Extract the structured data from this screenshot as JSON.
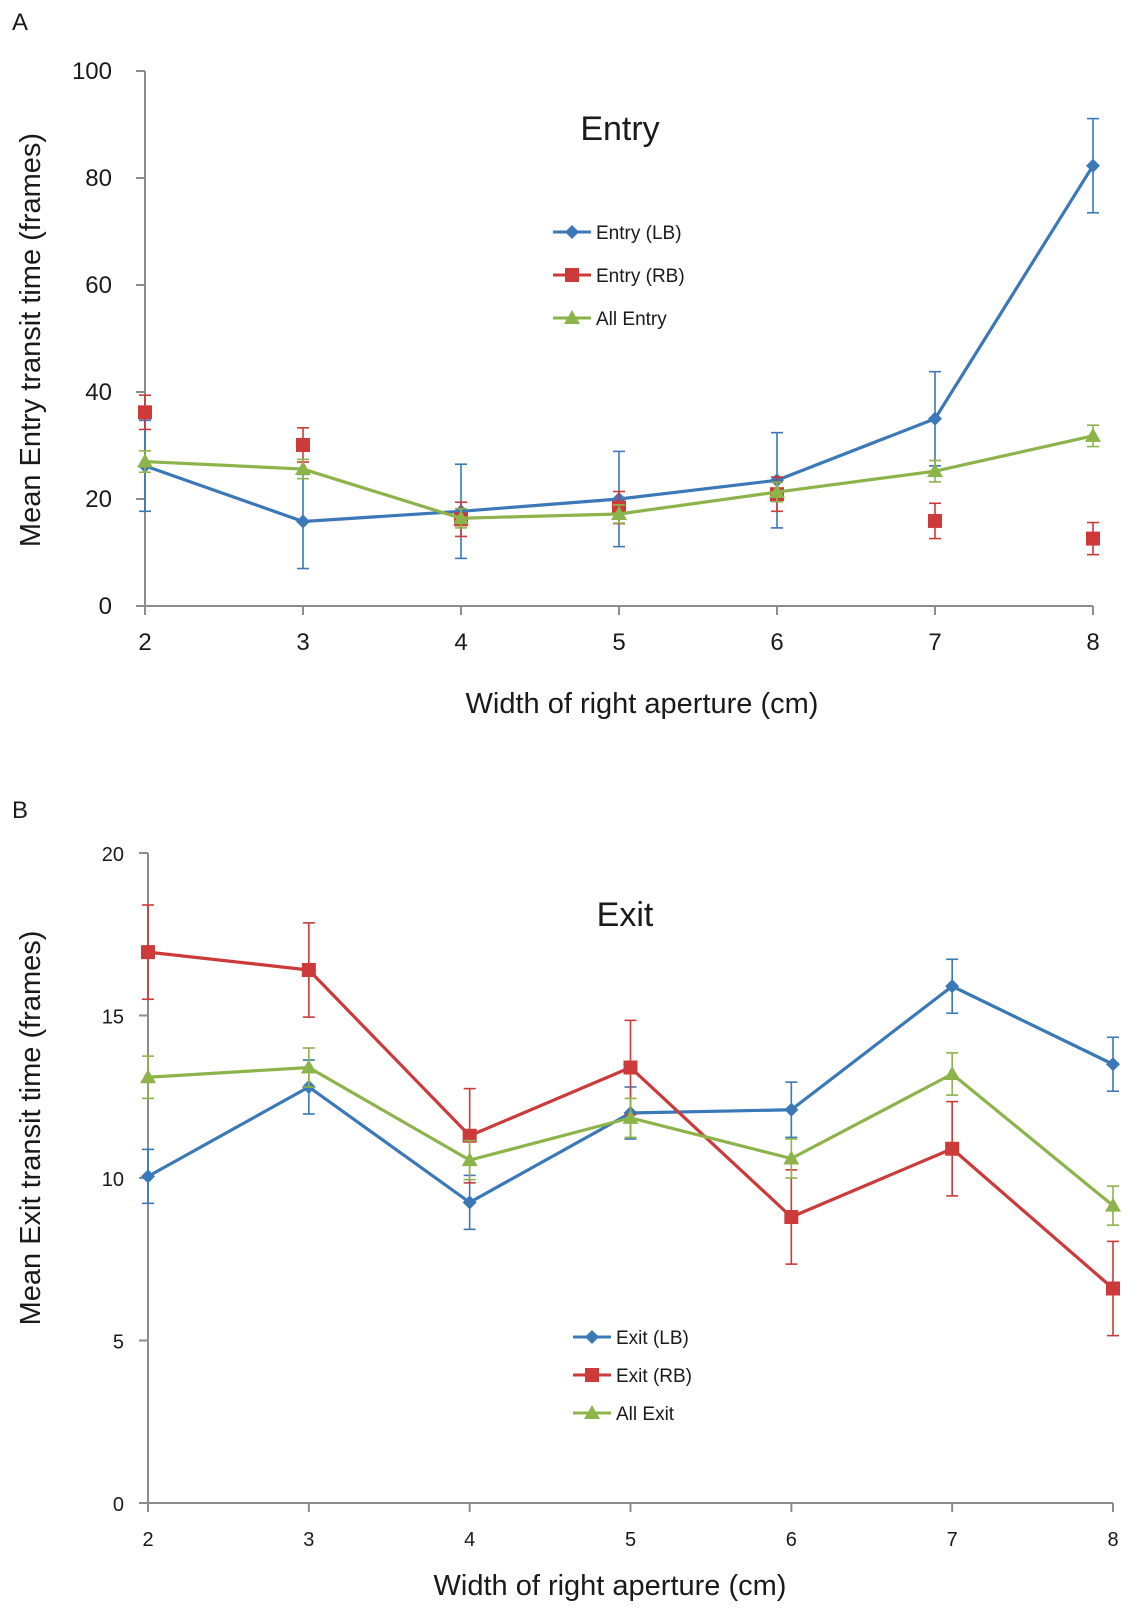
{
  "chart_data": [
    {
      "panel": "A",
      "type": "line",
      "title": "Entry",
      "xlabel": "Width of right aperture (cm)",
      "ylabel": "Mean Entry transit time (frames)",
      "x": [
        2,
        3,
        4,
        5,
        6,
        7,
        8
      ],
      "xticks": [
        "2",
        "3",
        "4",
        "5",
        "6",
        "7",
        "8"
      ],
      "yticks": [
        "0",
        "20",
        "40",
        "60",
        "80",
        "100"
      ],
      "ylim": [
        0,
        100
      ],
      "grid": false,
      "legend_position": "center",
      "series": [
        {
          "name": "Entry (LB)",
          "color": "#3a78b8",
          "marker": "diamond",
          "line": true,
          "values": [
            26.2,
            15.8,
            17.7,
            20.0,
            23.5,
            35.0,
            82.3
          ],
          "errors": [
            8.5,
            8.8,
            8.8,
            8.9,
            8.9,
            8.8,
            8.8
          ]
        },
        {
          "name": "Entry (RB)",
          "color": "#cc3a3a",
          "marker": "square",
          "line": false,
          "values": [
            36.2,
            30.1,
            16.2,
            18.4,
            20.9,
            15.9,
            12.6
          ],
          "errors": [
            3.2,
            3.2,
            3.2,
            3.0,
            3.2,
            3.3,
            3.0
          ]
        },
        {
          "name": "All Entry",
          "color": "#8db44a",
          "marker": "triangle",
          "line": true,
          "values": [
            27.0,
            25.6,
            16.4,
            17.2,
            21.3,
            25.2,
            31.8
          ],
          "errors": [
            2.0,
            1.8,
            1.8,
            1.7,
            1.8,
            2.0,
            2.0
          ]
        }
      ]
    },
    {
      "panel": "B",
      "type": "line",
      "title": "Exit",
      "xlabel": "Width of right aperture (cm)",
      "ylabel": "Mean Exit transit time (frames)",
      "x": [
        2,
        3,
        4,
        5,
        6,
        7,
        8
      ],
      "xticks": [
        "2",
        "3",
        "4",
        "5",
        "6",
        "7",
        "8"
      ],
      "yticks": [
        "0",
        "5",
        "10",
        "15",
        "20"
      ],
      "ylim": [
        0,
        20
      ],
      "grid": false,
      "legend_position": "bottom-center",
      "series": [
        {
          "name": "Exit (LB)",
          "color": "#3a78b8",
          "marker": "diamond",
          "line": true,
          "values": [
            10.05,
            12.8,
            9.25,
            12.0,
            12.1,
            15.9,
            13.5
          ],
          "errors": [
            0.83,
            0.83,
            0.83,
            0.8,
            0.85,
            0.83,
            0.83
          ]
        },
        {
          "name": "Exit (RB)",
          "color": "#cc3a3a",
          "marker": "square",
          "line": true,
          "values": [
            16.95,
            16.4,
            11.3,
            13.4,
            8.8,
            10.9,
            6.6
          ],
          "errors": [
            1.45,
            1.45,
            1.45,
            1.45,
            1.45,
            1.45,
            1.45
          ]
        },
        {
          "name": "All Exit",
          "color": "#8db44a",
          "marker": "triangle",
          "line": true,
          "values": [
            13.1,
            13.4,
            10.55,
            11.85,
            10.6,
            13.2,
            9.15
          ],
          "errors": [
            0.65,
            0.6,
            0.6,
            0.6,
            0.6,
            0.65,
            0.6
          ]
        }
      ]
    }
  ]
}
